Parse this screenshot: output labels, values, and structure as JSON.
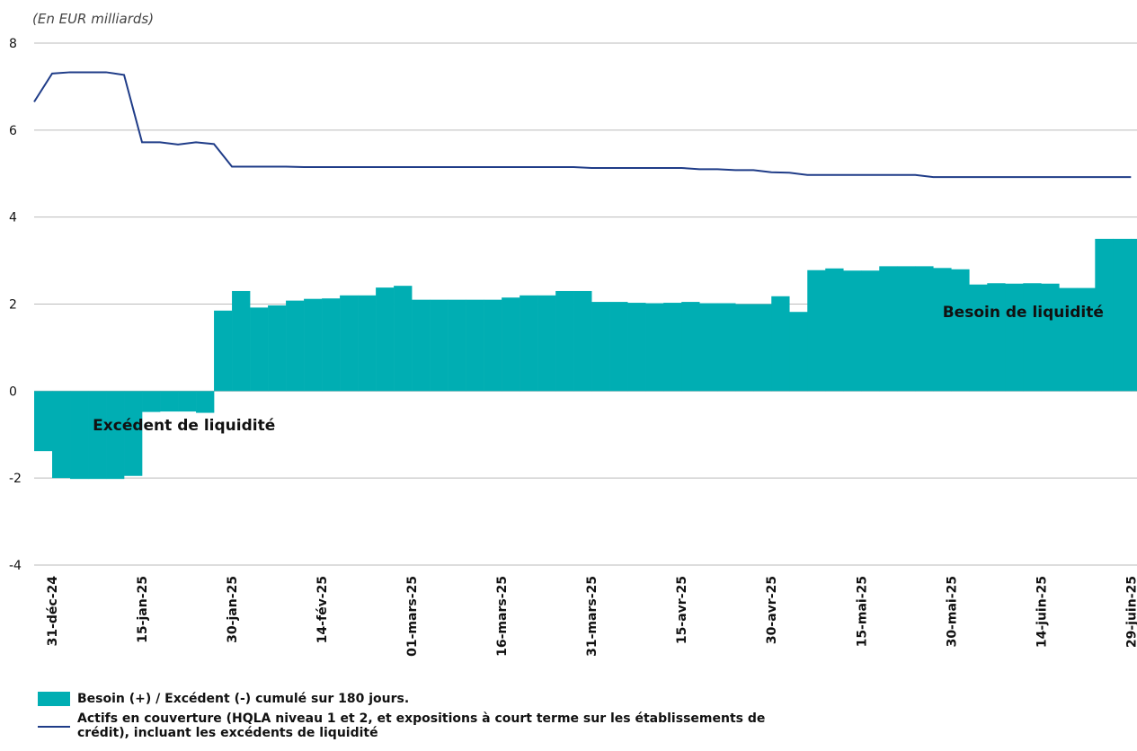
{
  "chart_data": {
    "type": "bar_line",
    "y_unit_label": "(En EUR milliards)",
    "x": [
      -3,
      0,
      3,
      6,
      9,
      12,
      15,
      18,
      21,
      24,
      27,
      30,
      33,
      36,
      39,
      42,
      45,
      48,
      51,
      54,
      57,
      60,
      63,
      66,
      69,
      72,
      75,
      78,
      81,
      84,
      87,
      90,
      93,
      96,
      99,
      102,
      105,
      108,
      111,
      114,
      117,
      120,
      123,
      126,
      129,
      132,
      135,
      138,
      141,
      144,
      147,
      150,
      153,
      156,
      159,
      162,
      165,
      168,
      171,
      174,
      177,
      180
    ],
    "xlim": [
      -3,
      181
    ],
    "xticks": [
      {
        "value": 0,
        "label": "31-déc-24"
      },
      {
        "value": 15,
        "label": "15-jan-25"
      },
      {
        "value": 30,
        "label": "30-jan-25"
      },
      {
        "value": 45,
        "label": "14-fév-25"
      },
      {
        "value": 60,
        "label": "01-mars-25"
      },
      {
        "value": 75,
        "label": "16-mars-25"
      },
      {
        "value": 90,
        "label": "31-mars-25"
      },
      {
        "value": 105,
        "label": "15-avr-25"
      },
      {
        "value": 120,
        "label": "30-avr-25"
      },
      {
        "value": 135,
        "label": "15-mai-25"
      },
      {
        "value": 150,
        "label": "30-mai-25"
      },
      {
        "value": 165,
        "label": "14-juin-25"
      },
      {
        "value": 180,
        "label": "29-juin-25"
      }
    ],
    "ylim": [
      -4,
      8
    ],
    "yticks": [
      -4,
      -2,
      0,
      2,
      4,
      6,
      8
    ],
    "grid": true,
    "series": [
      {
        "name": "Besoin (+) / Excédent (-) cumulé sur 180 jours.",
        "type": "bar",
        "color": "#00aeb3",
        "values": [
          -1.38,
          -2.0,
          -2.02,
          -2.02,
          -2.02,
          -1.95,
          -0.48,
          -0.47,
          -0.47,
          -0.5,
          1.85,
          2.3,
          1.92,
          1.97,
          2.08,
          2.12,
          2.13,
          2.2,
          2.2,
          2.38,
          2.42,
          2.1,
          2.1,
          2.1,
          2.1,
          2.1,
          2.15,
          2.2,
          2.2,
          2.3,
          2.3,
          2.05,
          2.05,
          2.03,
          2.02,
          2.03,
          2.05,
          2.02,
          2.02,
          2.0,
          2.0,
          2.18,
          1.82,
          2.78,
          2.82,
          2.77,
          2.77,
          2.87,
          2.87,
          2.87,
          2.83,
          2.8,
          2.45,
          2.48,
          2.47,
          2.48,
          2.47,
          2.37,
          2.37,
          3.5,
          3.5,
          3.5
        ]
      },
      {
        "name": "Actifs en couverture (HQLA niveau 1 et 2, et expositions à court terme sur les établissements de crédit), incluant les excédents de liquidité",
        "type": "line",
        "color": "#1f3c88",
        "values": [
          6.65,
          7.3,
          7.33,
          7.33,
          7.33,
          7.27,
          5.72,
          5.72,
          5.67,
          5.72,
          5.68,
          5.16,
          5.16,
          5.16,
          5.16,
          5.15,
          5.15,
          5.15,
          5.15,
          5.15,
          5.15,
          5.15,
          5.15,
          5.15,
          5.15,
          5.15,
          5.15,
          5.15,
          5.15,
          5.15,
          5.15,
          5.13,
          5.13,
          5.13,
          5.13,
          5.13,
          5.13,
          5.1,
          5.1,
          5.08,
          5.08,
          5.03,
          5.02,
          4.97,
          4.97,
          4.97,
          4.97,
          4.97,
          4.97,
          4.97,
          4.92,
          4.92,
          4.92,
          4.92,
          4.92,
          4.92,
          4.92,
          4.92,
          4.92,
          4.92,
          4.92,
          4.92
        ]
      }
    ],
    "annotations": [
      {
        "text": "Besoin de liquidité",
        "x": 162,
        "y": 1.7
      },
      {
        "text": "Excédent de liquidité",
        "x": 22,
        "y": -0.9
      }
    ]
  }
}
